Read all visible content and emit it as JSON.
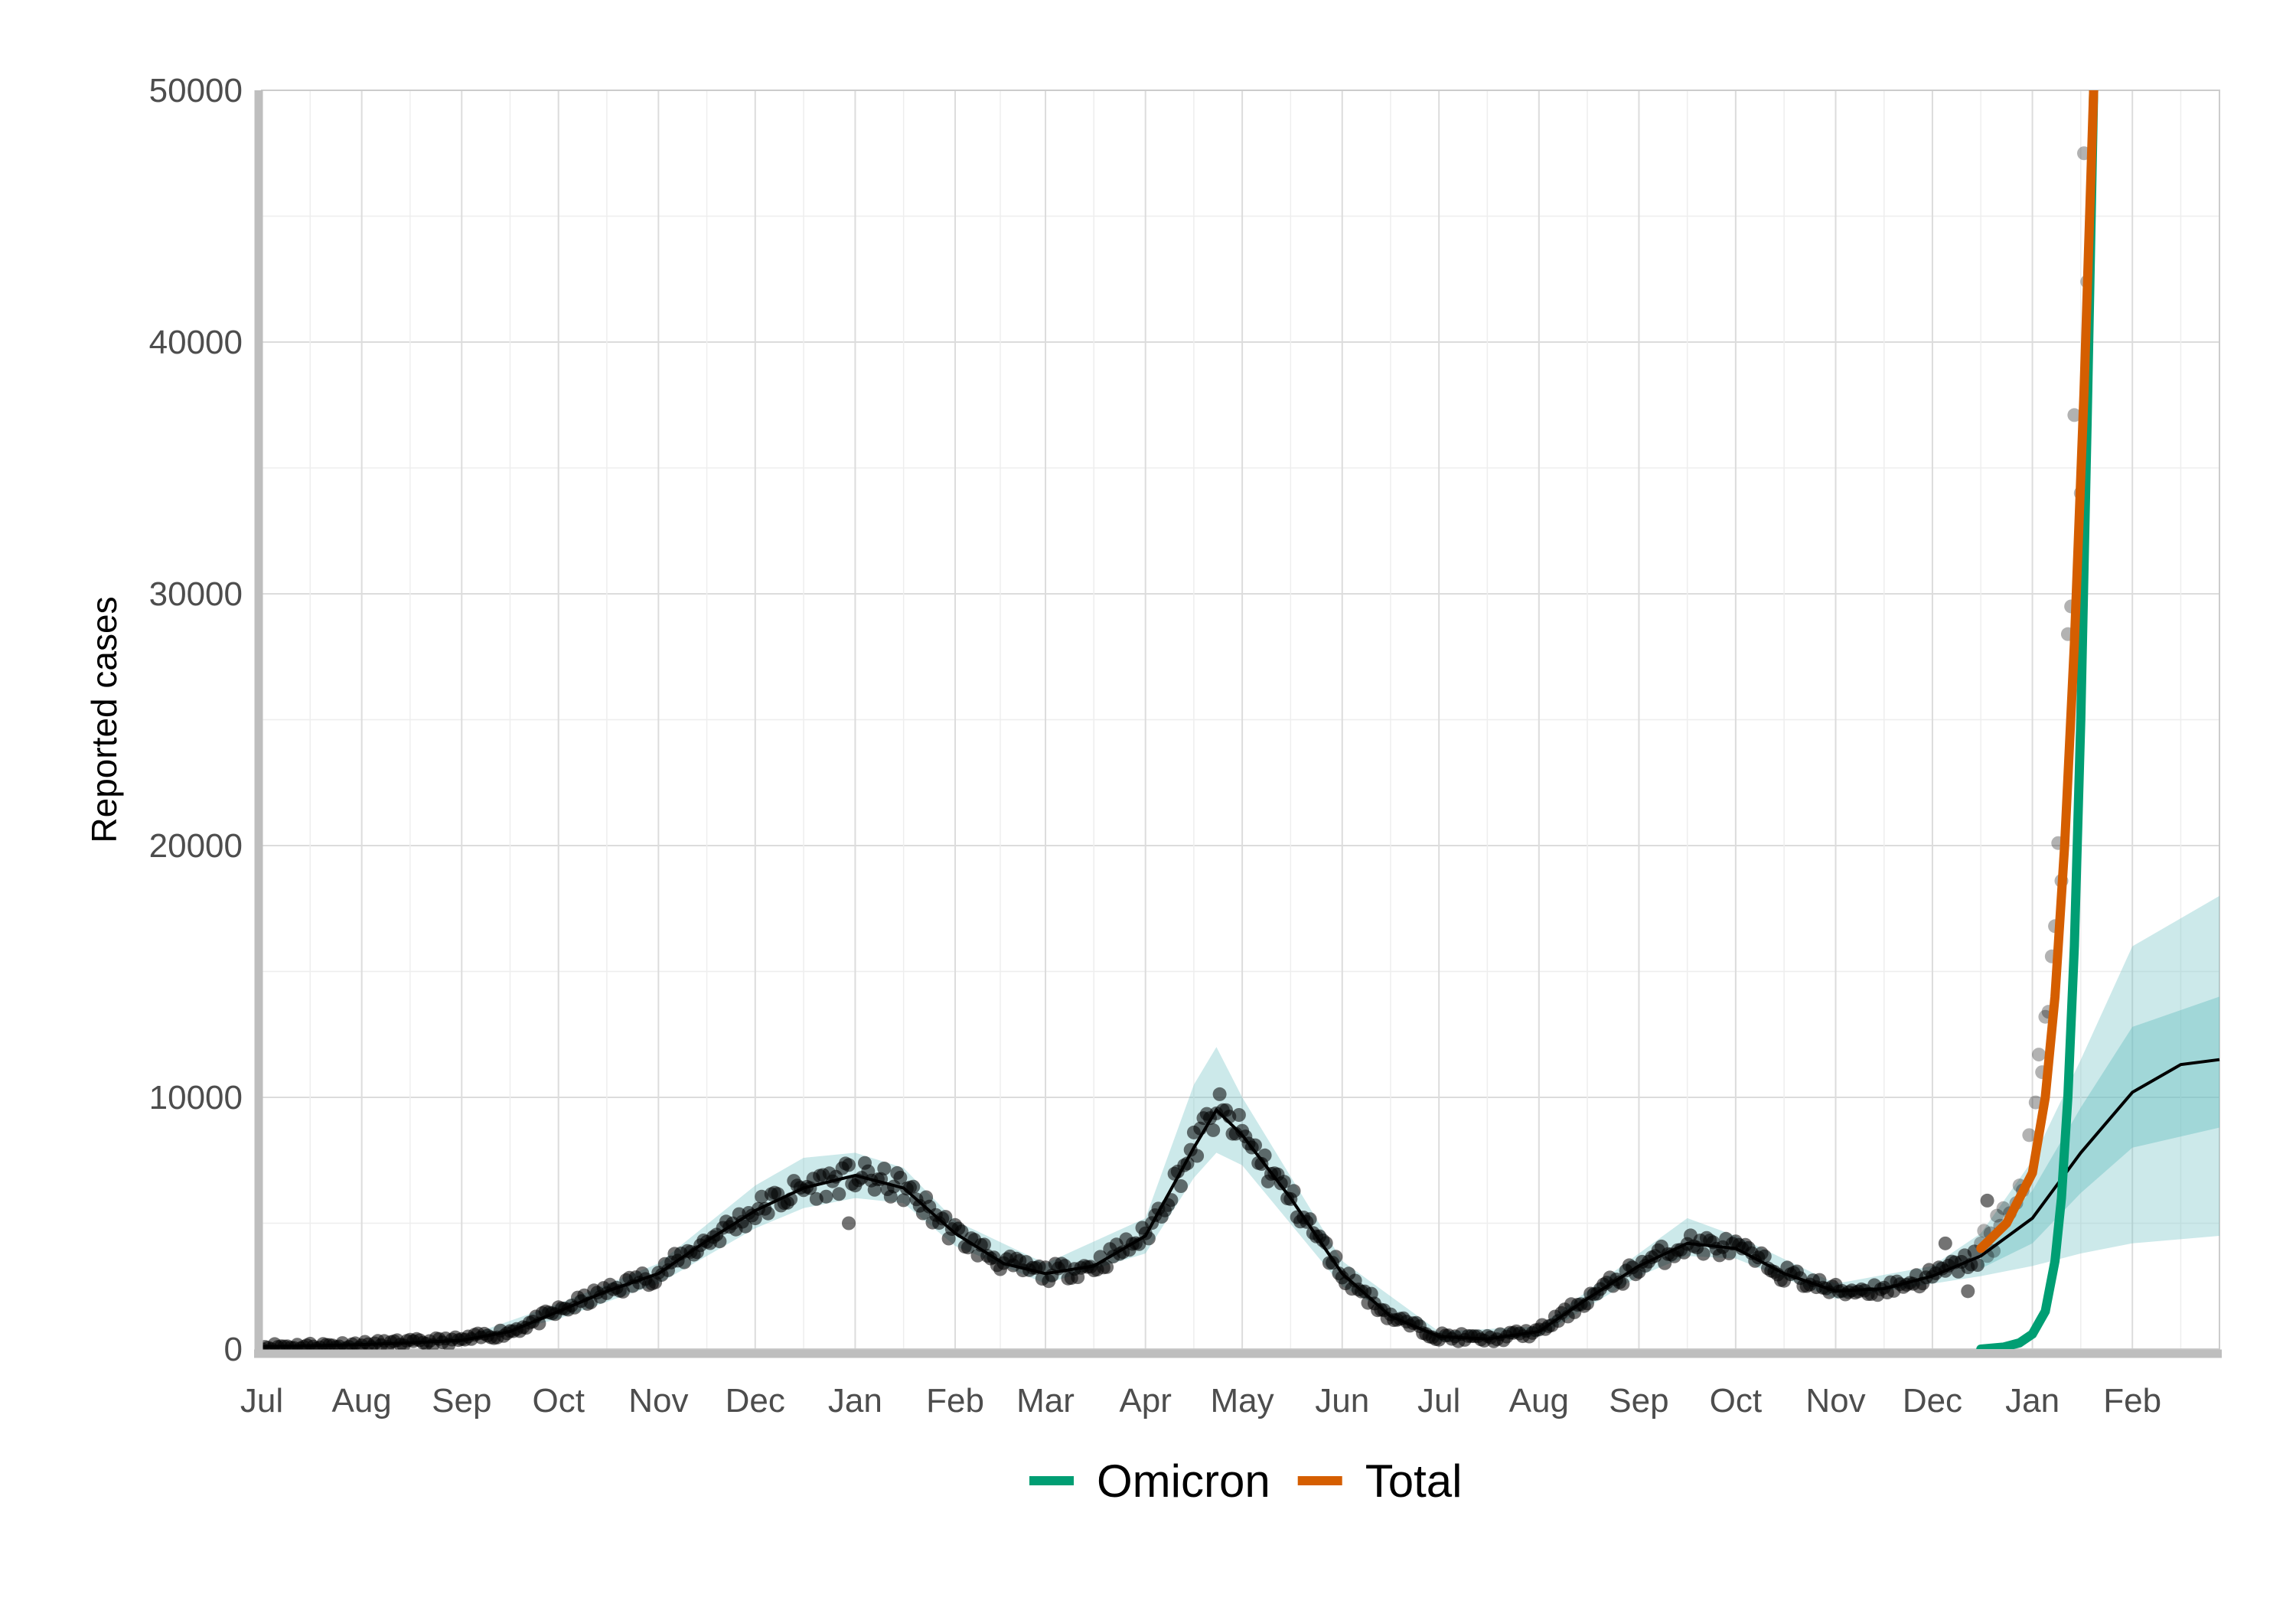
{
  "chart_data": {
    "type": "line",
    "title": "",
    "xlabel": "",
    "ylabel": "Reported cases",
    "ylim": [
      0,
      50000
    ],
    "y_ticks": [
      0,
      10000,
      20000,
      30000,
      40000,
      50000
    ],
    "x_start": "2020-07-01",
    "x_end": "2022-02-28",
    "x_ticks": [
      {
        "date": "2020-07-01",
        "label": "Jul"
      },
      {
        "date": "2020-08-01",
        "label": "Aug"
      },
      {
        "date": "2020-09-01",
        "label": "Sep"
      },
      {
        "date": "2020-10-01",
        "label": "Oct"
      },
      {
        "date": "2020-11-01",
        "label": "Nov"
      },
      {
        "date": "2020-12-01",
        "label": "Dec"
      },
      {
        "date": "2021-01-01",
        "label": "Jan"
      },
      {
        "date": "2021-02-01",
        "label": "Feb"
      },
      {
        "date": "2021-03-01",
        "label": "Mar"
      },
      {
        "date": "2021-04-01",
        "label": "Apr"
      },
      {
        "date": "2021-05-01",
        "label": "May"
      },
      {
        "date": "2021-06-01",
        "label": "Jun"
      },
      {
        "date": "2021-07-01",
        "label": "Jul"
      },
      {
        "date": "2021-08-01",
        "label": "Aug"
      },
      {
        "date": "2021-09-01",
        "label": "Sep"
      },
      {
        "date": "2021-10-01",
        "label": "Oct"
      },
      {
        "date": "2021-11-01",
        "label": "Nov"
      },
      {
        "date": "2021-12-01",
        "label": "Dec"
      },
      {
        "date": "2022-01-01",
        "label": "Jan"
      },
      {
        "date": "2022-02-01",
        "label": "Feb"
      }
    ],
    "grid": true,
    "legend_position": "bottom",
    "colors": {
      "omicron": "#009E73",
      "total": "#D55E00",
      "fit": "#000000",
      "band": "#6cc0c4",
      "points": "#000000"
    },
    "fit": [
      [
        "2020-07-01",
        100
      ],
      [
        "2020-07-16",
        130
      ],
      [
        "2020-08-01",
        180
      ],
      [
        "2020-08-16",
        250
      ],
      [
        "2020-09-01",
        350
      ],
      [
        "2020-09-16",
        700
      ],
      [
        "2020-10-01",
        1500
      ],
      [
        "2020-10-16",
        2300
      ],
      [
        "2020-11-01",
        3000
      ],
      [
        "2020-11-16",
        4300
      ],
      [
        "2020-12-01",
        5500
      ],
      [
        "2020-12-16",
        6400
      ],
      [
        "2021-01-01",
        6900
      ],
      [
        "2021-01-16",
        6400
      ],
      [
        "2021-02-01",
        4600
      ],
      [
        "2021-02-16",
        3400
      ],
      [
        "2021-03-01",
        3000
      ],
      [
        "2021-03-16",
        3300
      ],
      [
        "2021-04-01",
        4500
      ],
      [
        "2021-04-16",
        8000
      ],
      [
        "2021-04-23",
        9500
      ],
      [
        "2021-05-01",
        8500
      ],
      [
        "2021-05-16",
        6000
      ],
      [
        "2021-06-01",
        3000
      ],
      [
        "2021-06-16",
        1300
      ],
      [
        "2021-07-01",
        500
      ],
      [
        "2021-07-16",
        400
      ],
      [
        "2021-08-01",
        700
      ],
      [
        "2021-08-16",
        2000
      ],
      [
        "2021-09-01",
        3300
      ],
      [
        "2021-09-16",
        4200
      ],
      [
        "2021-10-01",
        4000
      ],
      [
        "2021-10-16",
        3000
      ],
      [
        "2021-11-01",
        2300
      ],
      [
        "2021-11-16",
        2400
      ],
      [
        "2021-12-01",
        2900
      ],
      [
        "2021-12-16",
        3700
      ],
      [
        "2022-01-01",
        5200
      ],
      [
        "2022-01-16",
        7800
      ],
      [
        "2022-02-01",
        10200
      ],
      [
        "2022-02-16",
        11300
      ],
      [
        "2022-02-28",
        11500
      ]
    ],
    "band_outer": [
      [
        "2020-07-01",
        50,
        150
      ],
      [
        "2020-09-01",
        250,
        450
      ],
      [
        "2020-10-01",
        1200,
        1800
      ],
      [
        "2020-11-01",
        2600,
        3400
      ],
      [
        "2020-12-01",
        4800,
        6500
      ],
      [
        "2020-12-16",
        5600,
        7600
      ],
      [
        "2021-01-01",
        6000,
        7800
      ],
      [
        "2021-01-16",
        5800,
        7200
      ],
      [
        "2021-02-01",
        4100,
        5100
      ],
      [
        "2021-03-01",
        2600,
        3400
      ],
      [
        "2021-04-01",
        3800,
        5200
      ],
      [
        "2021-04-16",
        6800,
        10500
      ],
      [
        "2021-04-23",
        7800,
        12000
      ],
      [
        "2021-05-01",
        7300,
        10000
      ],
      [
        "2021-06-01",
        2500,
        3500
      ],
      [
        "2021-07-01",
        300,
        700
      ],
      [
        "2021-08-01",
        500,
        900
      ],
      [
        "2021-09-01",
        2900,
        3800
      ],
      [
        "2021-09-16",
        3700,
        5200
      ],
      [
        "2021-10-01",
        3600,
        4500
      ],
      [
        "2021-11-01",
        2000,
        2600
      ],
      [
        "2021-12-01",
        2600,
        3300
      ],
      [
        "2021-12-16",
        2900,
        4600
      ],
      [
        "2022-01-01",
        3300,
        7500
      ],
      [
        "2022-01-16",
        3800,
        11500
      ],
      [
        "2022-02-01",
        4200,
        16000
      ],
      [
        "2022-02-28",
        4500,
        18000
      ]
    ],
    "band_inner": [
      [
        "2021-12-16",
        3200,
        4200
      ],
      [
        "2022-01-01",
        4200,
        6300
      ],
      [
        "2022-01-16",
        6200,
        9600
      ],
      [
        "2022-02-01",
        8000,
        12800
      ],
      [
        "2022-02-28",
        8800,
        14000
      ]
    ],
    "series": [
      {
        "name": "Omicron",
        "points": [
          [
            "2021-12-16",
            0
          ],
          [
            "2021-12-23",
            80
          ],
          [
            "2021-12-28",
            250
          ],
          [
            "2022-01-01",
            600
          ],
          [
            "2022-01-05",
            1500
          ],
          [
            "2022-01-08",
            3500
          ],
          [
            "2022-01-10",
            6000
          ],
          [
            "2022-01-12",
            10000
          ],
          [
            "2022-01-14",
            16000
          ],
          [
            "2022-01-16",
            25000
          ],
          [
            "2022-01-18",
            37000
          ],
          [
            "2022-01-20",
            50000
          ]
        ]
      },
      {
        "name": "Total",
        "points": [
          [
            "2021-12-16",
            4000
          ],
          [
            "2021-12-24",
            5000
          ],
          [
            "2022-01-01",
            7000
          ],
          [
            "2022-01-05",
            10000
          ],
          [
            "2022-01-08",
            14000
          ],
          [
            "2022-01-11",
            20000
          ],
          [
            "2022-01-14",
            28000
          ],
          [
            "2022-01-17",
            38000
          ],
          [
            "2022-01-19",
            46000
          ],
          [
            "2022-01-20",
            50000
          ]
        ]
      }
    ],
    "recent_observations": [
      [
        "2021-12-16",
        4200
      ],
      [
        "2021-12-17",
        4700
      ],
      [
        "2021-12-18",
        3700
      ],
      [
        "2021-12-19",
        4600
      ],
      [
        "2021-12-20",
        3900
      ],
      [
        "2021-12-21",
        5300
      ],
      [
        "2021-12-22",
        4900
      ],
      [
        "2021-12-23",
        5600
      ],
      [
        "2021-12-25",
        5400
      ],
      [
        "2021-12-27",
        5800
      ],
      [
        "2021-12-28",
        6500
      ],
      [
        "2021-12-29",
        6300
      ],
      [
        "2021-12-31",
        8500
      ],
      [
        "2022-01-02",
        9800
      ],
      [
        "2022-01-03",
        11700
      ],
      [
        "2022-01-04",
        11000
      ],
      [
        "2022-01-05",
        13200
      ],
      [
        "2022-01-06",
        13400
      ],
      [
        "2022-01-07",
        15600
      ],
      [
        "2022-01-08",
        16800
      ],
      [
        "2022-01-09",
        20100
      ],
      [
        "2022-01-10",
        18600
      ],
      [
        "2022-01-12",
        28400
      ],
      [
        "2022-01-13",
        29500
      ],
      [
        "2022-01-14",
        37100
      ],
      [
        "2022-01-16",
        34000
      ],
      [
        "2022-01-17",
        47500
      ],
      [
        "2022-01-18",
        42400
      ]
    ],
    "early_outliers": [
      [
        "2020-12-30",
        5000
      ],
      [
        "2021-12-05",
        4200
      ],
      [
        "2021-12-18",
        5900
      ],
      [
        "2021-12-12",
        2300
      ]
    ]
  },
  "legend": {
    "items": [
      {
        "label": "Omicron",
        "color": "#009E73"
      },
      {
        "label": "Total",
        "color": "#D55E00"
      }
    ]
  }
}
